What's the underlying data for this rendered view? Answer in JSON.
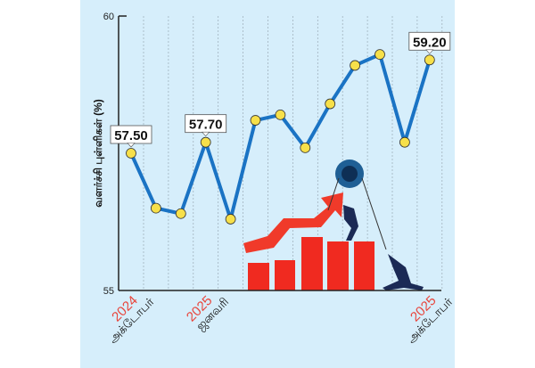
{
  "chart_data": {
    "type": "line",
    "title": "",
    "ylabel": "வளர்ச்சி புள்ளிகள் (%)",
    "xlabel": "",
    "ylim": [
      55,
      60
    ],
    "yticks": [
      "55",
      "60"
    ],
    "x": [
      "2024-10",
      "2024-11",
      "2024-12",
      "2025-01",
      "2025-02",
      "2025-03",
      "2025-04",
      "2025-05",
      "2025-06",
      "2025-07",
      "2025-08",
      "2025-09",
      "2025-10"
    ],
    "values": [
      57.5,
      56.5,
      56.4,
      57.7,
      56.3,
      58.1,
      58.2,
      57.6,
      58.4,
      59.1,
      59.3,
      57.7,
      59.2
    ],
    "x_tick_labels": [
      {
        "index": 0,
        "year": "2024",
        "month": "அக்டோபர்"
      },
      {
        "index": 3,
        "year": "2025",
        "month": "ஜனவரி"
      },
      {
        "index": 12,
        "year": "2025",
        "month": "அக்டோபர்"
      }
    ],
    "data_labels": [
      {
        "index": 0,
        "text": "57.50"
      },
      {
        "index": 3,
        "text": "57.70"
      },
      {
        "index": 12,
        "text": "59.20"
      }
    ],
    "grid": "vertical dashed",
    "colors": {
      "line": "#1a73c4",
      "marker": "#f7e04a",
      "year": "#e8453c",
      "background": "#d6eefb",
      "illustration": "#f02a20"
    }
  }
}
